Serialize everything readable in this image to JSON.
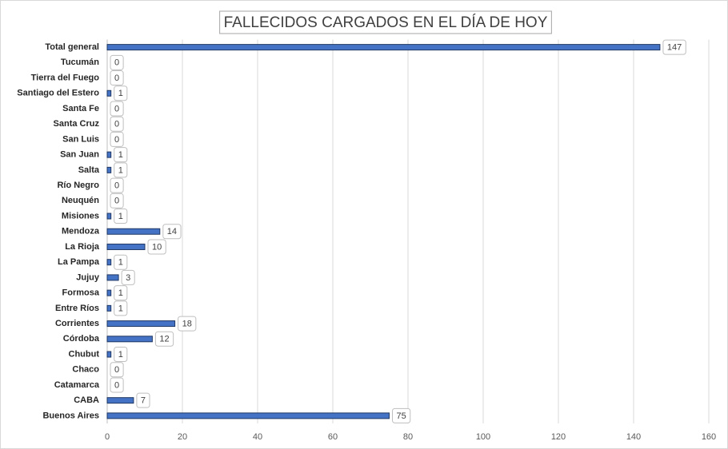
{
  "chart_data": {
    "type": "barh",
    "title": "FALLECIDOS CARGADOS EN EL DÍA DE HOY",
    "categories": [
      "Total general",
      "Tucumán",
      "Tierra del Fuego",
      "Santiago del Estero",
      "Santa Fe",
      "Santa Cruz",
      "San Luis",
      "San Juan",
      "Salta",
      "Río Negro",
      "Neuquén",
      "Misiones",
      "Mendoza",
      "La Rioja",
      "La Pampa",
      "Jujuy",
      "Formosa",
      "Entre Ríos",
      "Corrientes",
      "Córdoba",
      "Chubut",
      "Chaco",
      "Catamarca",
      "CABA",
      "Buenos Aires"
    ],
    "values": [
      147,
      0,
      0,
      1,
      0,
      0,
      0,
      1,
      1,
      0,
      0,
      1,
      14,
      10,
      1,
      3,
      1,
      1,
      18,
      12,
      1,
      0,
      0,
      7,
      75
    ],
    "color": "#4472c4",
    "xlim": [
      0,
      160
    ],
    "xticks": [
      0,
      20,
      40,
      60,
      80,
      100,
      120,
      140,
      160
    ],
    "grid": true
  }
}
